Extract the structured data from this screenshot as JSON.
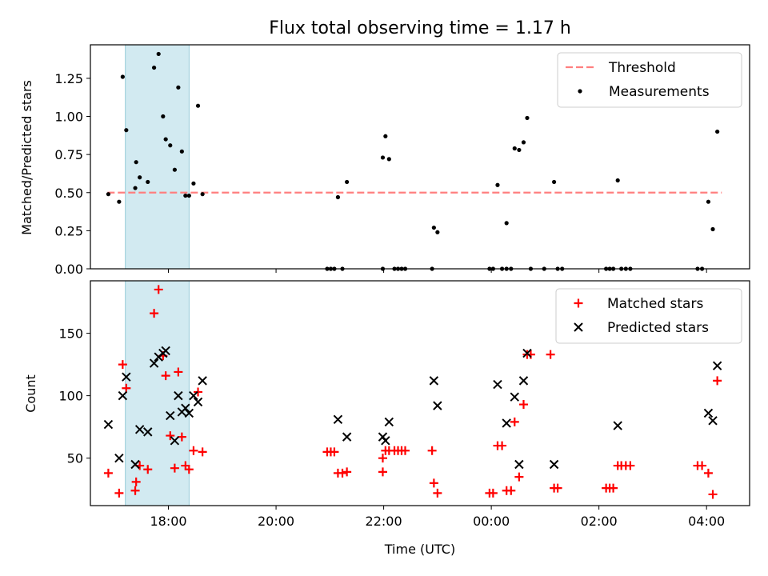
{
  "chart_data": [
    {
      "type": "scatter",
      "title": "Flux total observing time = 1.17 h",
      "xlabel": "",
      "ylabel": "Matched/Predicted stars",
      "ylim": [
        0,
        1.47
      ],
      "xlim": [
        "16:33",
        "04:48"
      ],
      "x_ticks": [
        "18:00",
        "20:00",
        "22:00",
        "00:00",
        "02:00",
        "04:00"
      ],
      "y_ticks": [
        "0.00",
        "0.25",
        "0.50",
        "0.75",
        "1.00",
        "1.25"
      ],
      "highlight_span": [
        "17:12",
        "18:23"
      ],
      "highlight_color": "#add8e6",
      "threshold": {
        "name": "Threshold",
        "value": 0.5,
        "color": "#ff7f7f",
        "style": "dashed",
        "x_range": [
          "16:52",
          "04:17"
        ]
      },
      "legend": {
        "placement": "top-right",
        "entries": [
          "Threshold",
          "Measurements"
        ]
      },
      "series": [
        {
          "name": "Measurements",
          "color": "#000000",
          "marker": "dot",
          "points": [
            [
              "16:53",
              0.49
            ],
            [
              "17:05",
              0.44
            ],
            [
              "17:09",
              1.26
            ],
            [
              "17:13",
              0.91
            ],
            [
              "17:23",
              0.53
            ],
            [
              "17:24",
              0.7
            ],
            [
              "17:28",
              0.6
            ],
            [
              "17:37",
              0.57
            ],
            [
              "17:44",
              1.32
            ],
            [
              "17:49",
              1.41
            ],
            [
              "17:54",
              1.0
            ],
            [
              "17:57",
              0.85
            ],
            [
              "18:02",
              0.81
            ],
            [
              "18:07",
              0.65
            ],
            [
              "18:11",
              1.19
            ],
            [
              "18:15",
              0.77
            ],
            [
              "18:19",
              0.48
            ],
            [
              "18:23",
              0.48
            ],
            [
              "18:28",
              0.56
            ],
            [
              "18:33",
              1.07
            ],
            [
              "18:38",
              0.49
            ],
            [
              "20:57",
              0.0
            ],
            [
              "21:01",
              0.0
            ],
            [
              "21:05",
              0.0
            ],
            [
              "21:09",
              0.47
            ],
            [
              "21:14",
              0.0
            ],
            [
              "21:19",
              0.57
            ],
            [
              "21:59",
              0.0
            ],
            [
              "21:59",
              0.73
            ],
            [
              "22:02",
              0.87
            ],
            [
              "22:06",
              0.72
            ],
            [
              "22:12",
              0.0
            ],
            [
              "22:16",
              0.0
            ],
            [
              "22:20",
              0.0
            ],
            [
              "22:24",
              0.0
            ],
            [
              "22:54",
              0.0
            ],
            [
              "22:56",
              0.27
            ],
            [
              "23:00",
              0.24
            ],
            [
              "23:58",
              0.0
            ],
            [
              "00:02",
              0.0
            ],
            [
              "00:07",
              0.55
            ],
            [
              "00:12",
              0.0
            ],
            [
              "00:17",
              0.3
            ],
            [
              "00:17",
              0.0
            ],
            [
              "00:22",
              0.0
            ],
            [
              "00:26",
              0.79
            ],
            [
              "00:31",
              0.78
            ],
            [
              "00:36",
              0.83
            ],
            [
              "00:40",
              0.99
            ],
            [
              "00:44",
              0.0
            ],
            [
              "00:59",
              0.0
            ],
            [
              "01:10",
              0.57
            ],
            [
              "01:14",
              0.0
            ],
            [
              "01:19",
              0.0
            ],
            [
              "02:08",
              0.0
            ],
            [
              "02:12",
              0.0
            ],
            [
              "02:16",
              0.0
            ],
            [
              "02:21",
              0.58
            ],
            [
              "02:25",
              0.0
            ],
            [
              "02:30",
              0.0
            ],
            [
              "02:35",
              0.0
            ],
            [
              "03:50",
              0.0
            ],
            [
              "03:55",
              0.0
            ],
            [
              "04:02",
              0.44
            ],
            [
              "04:07",
              0.26
            ],
            [
              "04:12",
              0.9
            ]
          ]
        }
      ]
    },
    {
      "type": "scatter",
      "title": "",
      "xlabel": "Time (UTC)",
      "ylabel": "Count",
      "ylim": [
        12,
        192
      ],
      "xlim": [
        "16:33",
        "04:48"
      ],
      "x_ticks": [
        "18:00",
        "20:00",
        "22:00",
        "00:00",
        "02:00",
        "04:00"
      ],
      "y_ticks": [
        "50",
        "100",
        "150"
      ],
      "highlight_span": [
        "17:12",
        "18:23"
      ],
      "highlight_color": "#add8e6",
      "legend": {
        "placement": "top-right",
        "entries": [
          "Matched stars",
          "Predicted stars"
        ]
      },
      "series": [
        {
          "name": "Matched stars",
          "color": "#ff0000",
          "marker": "plus",
          "points": [
            [
              "16:53",
              38
            ],
            [
              "17:05",
              22
            ],
            [
              "17:09",
              125
            ],
            [
              "17:13",
              106
            ],
            [
              "17:23",
              24
            ],
            [
              "17:24",
              31
            ],
            [
              "17:28",
              44
            ],
            [
              "17:37",
              41
            ],
            [
              "17:44",
              166
            ],
            [
              "17:49",
              185
            ],
            [
              "17:54",
              132
            ],
            [
              "17:57",
              116
            ],
            [
              "18:02",
              68
            ],
            [
              "18:07",
              42
            ],
            [
              "18:11",
              119
            ],
            [
              "18:15",
              67
            ],
            [
              "18:19",
              44
            ],
            [
              "18:23",
              41
            ],
            [
              "18:28",
              56
            ],
            [
              "18:33",
              103
            ],
            [
              "18:38",
              55
            ],
            [
              "20:57",
              55
            ],
            [
              "21:01",
              55
            ],
            [
              "21:05",
              55
            ],
            [
              "21:09",
              38
            ],
            [
              "21:14",
              38
            ],
            [
              "21:19",
              39
            ],
            [
              "21:59",
              39
            ],
            [
              "21:59",
              50
            ],
            [
              "22:02",
              56
            ],
            [
              "22:06",
              56
            ],
            [
              "22:12",
              56
            ],
            [
              "22:16",
              56
            ],
            [
              "22:20",
              56
            ],
            [
              "22:24",
              56
            ],
            [
              "22:54",
              56
            ],
            [
              "22:56",
              30
            ],
            [
              "23:00",
              22
            ],
            [
              "23:58",
              22
            ],
            [
              "00:02",
              22
            ],
            [
              "00:07",
              60
            ],
            [
              "00:12",
              60
            ],
            [
              "00:17",
              24
            ],
            [
              "00:22",
              24
            ],
            [
              "00:26",
              79
            ],
            [
              "00:31",
              35
            ],
            [
              "00:36",
              93
            ],
            [
              "00:40",
              133
            ],
            [
              "00:44",
              133
            ],
            [
              "01:10",
              26
            ],
            [
              "01:14",
              26
            ],
            [
              "01:06",
              133
            ],
            [
              "02:08",
              26
            ],
            [
              "02:12",
              26
            ],
            [
              "02:16",
              26
            ],
            [
              "02:21",
              44
            ],
            [
              "02:25",
              44
            ],
            [
              "02:30",
              44
            ],
            [
              "02:35",
              44
            ],
            [
              "03:50",
              44
            ],
            [
              "03:55",
              44
            ],
            [
              "04:02",
              38
            ],
            [
              "04:07",
              21
            ],
            [
              "04:12",
              112
            ]
          ]
        },
        {
          "name": "Predicted stars",
          "color": "#000000",
          "marker": "x",
          "points": [
            [
              "16:53",
              77
            ],
            [
              "17:05",
              50
            ],
            [
              "17:09",
              100
            ],
            [
              "17:13",
              115
            ],
            [
              "17:23",
              45
            ],
            [
              "17:28",
              73
            ],
            [
              "17:37",
              71
            ],
            [
              "17:44",
              126
            ],
            [
              "17:49",
              131
            ],
            [
              "17:54",
              134
            ],
            [
              "17:57",
              136
            ],
            [
              "18:02",
              84
            ],
            [
              "18:07",
              64
            ],
            [
              "18:11",
              100
            ],
            [
              "18:15",
              87
            ],
            [
              "18:19",
              90
            ],
            [
              "18:23",
              86
            ],
            [
              "18:28",
              100
            ],
            [
              "18:33",
              95
            ],
            [
              "18:38",
              112
            ],
            [
              "21:09",
              81
            ],
            [
              "21:19",
              67
            ],
            [
              "21:59",
              67
            ],
            [
              "22:02",
              64
            ],
            [
              "22:06",
              79
            ],
            [
              "22:56",
              112
            ],
            [
              "23:00",
              92
            ],
            [
              "00:07",
              109
            ],
            [
              "00:17",
              78
            ],
            [
              "00:26",
              99
            ],
            [
              "00:31",
              45
            ],
            [
              "00:36",
              112
            ],
            [
              "00:40",
              134
            ],
            [
              "01:10",
              45
            ],
            [
              "02:21",
              76
            ],
            [
              "04:02",
              86
            ],
            [
              "04:07",
              80
            ],
            [
              "04:12",
              124
            ]
          ]
        }
      ]
    }
  ]
}
